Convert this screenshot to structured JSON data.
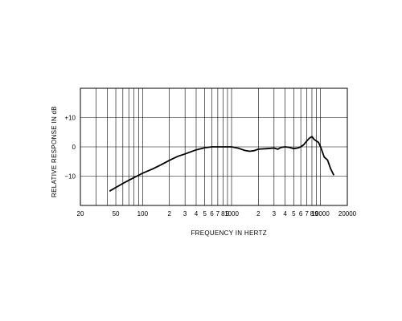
{
  "chart_data": {
    "type": "line",
    "title": "",
    "xlabel": "FREQUENCY IN HERTZ",
    "ylabel": "RELATIVE RESPONSE IN dB",
    "x_scale": "log",
    "xlim": [
      20,
      20000
    ],
    "ylim": [
      -20,
      20
    ],
    "grid": true,
    "legend": "none",
    "x_tick_labels": [
      {
        "value": 20,
        "label": "20"
      },
      {
        "value": 50,
        "label": "50"
      },
      {
        "value": 100,
        "label": "100"
      },
      {
        "value": 200,
        "label": "2"
      },
      {
        "value": 300,
        "label": "3"
      },
      {
        "value": 400,
        "label": "4"
      },
      {
        "value": 500,
        "label": "5"
      },
      {
        "value": 600,
        "label": "6"
      },
      {
        "value": 700,
        "label": "7"
      },
      {
        "value": 800,
        "label": "8"
      },
      {
        "value": 900,
        "label": "9"
      },
      {
        "value": 1000,
        "label": "1000"
      },
      {
        "value": 2000,
        "label": "2"
      },
      {
        "value": 3000,
        "label": "3"
      },
      {
        "value": 4000,
        "label": "4"
      },
      {
        "value": 5000,
        "label": "5"
      },
      {
        "value": 6000,
        "label": "6"
      },
      {
        "value": 7000,
        "label": "7"
      },
      {
        "value": 8000,
        "label": "8"
      },
      {
        "value": 9000,
        "label": "9"
      },
      {
        "value": 10000,
        "label": "10000"
      },
      {
        "value": 20000,
        "label": "20000"
      }
    ],
    "y_tick_labels": [
      {
        "value": 10,
        "label": "+10"
      },
      {
        "value": 0,
        "label": "0"
      },
      {
        "value": -10,
        "label": "−10"
      }
    ],
    "series": [
      {
        "color": "#000000",
        "x": [
          43,
          60,
          80,
          100,
          130,
          160,
          200,
          250,
          300,
          400,
          500,
          600,
          700,
          800,
          900,
          1000,
          1200,
          1400,
          1600,
          1800,
          2000,
          2500,
          3000,
          3300,
          3600,
          4000,
          4500,
          5000,
          5500,
          6000,
          6500,
          7000,
          7500,
          8000,
          8500,
          9000,
          9500,
          10000,
          11000,
          12000,
          13000,
          14000
        ],
        "y": [
          -15,
          -12.5,
          -10.5,
          -9,
          -7.5,
          -6.2,
          -4.6,
          -3.2,
          -2.4,
          -1,
          -0.3,
          0,
          0,
          0,
          0,
          0,
          -0.5,
          -1.2,
          -1.5,
          -1.3,
          -0.8,
          -0.6,
          -0.4,
          -0.8,
          -0.2,
          0,
          -0.2,
          -0.6,
          -0.4,
          0,
          0.8,
          2,
          3,
          3.5,
          2.5,
          2,
          1.5,
          0,
          -3.5,
          -4.5,
          -7.5,
          -9.5
        ]
      }
    ]
  }
}
